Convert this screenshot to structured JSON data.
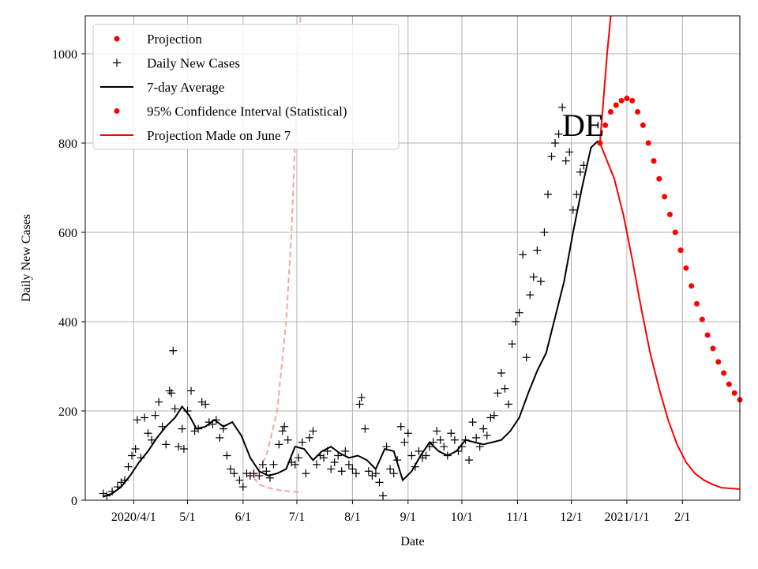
{
  "chart_data": {
    "type": "line",
    "title": "",
    "region_label": "DE",
    "xlabel": "Date",
    "ylabel": "Daily New Cases",
    "x_ticks": [
      {
        "label": "2020/4/1",
        "date": "2020-04-01"
      },
      {
        "label": "5/1",
        "date": "2020-05-01"
      },
      {
        "label": "6/1",
        "date": "2020-06-01"
      },
      {
        "label": "7/1",
        "date": "2020-07-01"
      },
      {
        "label": "8/1",
        "date": "2020-08-01"
      },
      {
        "label": "9/1",
        "date": "2020-09-01"
      },
      {
        "label": "10/1",
        "date": "2020-10-01"
      },
      {
        "label": "11/1",
        "date": "2020-11-01"
      },
      {
        "label": "12/1",
        "date": "2020-12-01"
      },
      {
        "label": "2021/1/1",
        "date": "2021-01-01"
      },
      {
        "label": "2/1",
        "date": "2021-02-01"
      }
    ],
    "y_ticks": [
      0,
      200,
      400,
      600,
      800,
      1000
    ],
    "xlim": [
      "2020-03-05",
      "2021-03-05"
    ],
    "ylim": [
      0,
      1085
    ],
    "grid": true,
    "legend_position": "upper-left",
    "legend": [
      {
        "label": "Projection",
        "marker": "dot",
        "color": "#ff0000"
      },
      {
        "label": "Daily New Cases",
        "marker": "plus",
        "color": "#000000"
      },
      {
        "label": "7-day Average",
        "marker": "line",
        "color": "#000000"
      },
      {
        "label": "95% Confidence Interval (Statistical)",
        "marker": "dot",
        "color": "#ff0000"
      },
      {
        "label": "Projection Made on June 7",
        "marker": "line",
        "color": "#ff0000"
      }
    ],
    "colors": {
      "daily": "#000000",
      "average": "#000000",
      "projection": "#ff0000",
      "june_projection": "#f4a6a6"
    },
    "seven_day_average": [
      [
        "2020-03-15",
        8
      ],
      [
        "2020-03-20",
        15
      ],
      [
        "2020-03-25",
        30
      ],
      [
        "2020-03-30",
        55
      ],
      [
        "2020-04-04",
        85
      ],
      [
        "2020-04-09",
        110
      ],
      [
        "2020-04-14",
        140
      ],
      [
        "2020-04-19",
        165
      ],
      [
        "2020-04-24",
        185
      ],
      [
        "2020-04-28",
        210
      ],
      [
        "2020-05-02",
        190
      ],
      [
        "2020-05-06",
        160
      ],
      [
        "2020-05-11",
        165
      ],
      [
        "2020-05-16",
        180
      ],
      [
        "2020-05-21",
        165
      ],
      [
        "2020-05-26",
        175
      ],
      [
        "2020-05-31",
        145
      ],
      [
        "2020-06-05",
        95
      ],
      [
        "2020-06-10",
        65
      ],
      [
        "2020-06-15",
        55
      ],
      [
        "2020-06-20",
        60
      ],
      [
        "2020-06-25",
        70
      ],
      [
        "2020-06-30",
        120
      ],
      [
        "2020-07-05",
        115
      ],
      [
        "2020-07-10",
        90
      ],
      [
        "2020-07-15",
        110
      ],
      [
        "2020-07-20",
        120
      ],
      [
        "2020-07-25",
        105
      ],
      [
        "2020-07-30",
        95
      ],
      [
        "2020-08-04",
        100
      ],
      [
        "2020-08-09",
        90
      ],
      [
        "2020-08-14",
        70
      ],
      [
        "2020-08-19",
        115
      ],
      [
        "2020-08-24",
        110
      ],
      [
        "2020-08-29",
        45
      ],
      [
        "2020-09-03",
        65
      ],
      [
        "2020-09-08",
        100
      ],
      [
        "2020-09-13",
        130
      ],
      [
        "2020-09-18",
        110
      ],
      [
        "2020-09-23",
        100
      ],
      [
        "2020-09-28",
        110
      ],
      [
        "2020-10-03",
        135
      ],
      [
        "2020-10-08",
        130
      ],
      [
        "2020-10-13",
        125
      ],
      [
        "2020-10-18",
        130
      ],
      [
        "2020-10-23",
        135
      ],
      [
        "2020-10-28",
        155
      ],
      [
        "2020-11-02",
        185
      ],
      [
        "2020-11-07",
        240
      ],
      [
        "2020-11-12",
        290
      ],
      [
        "2020-11-17",
        330
      ],
      [
        "2020-11-22",
        410
      ],
      [
        "2020-11-27",
        490
      ],
      [
        "2020-12-02",
        600
      ],
      [
        "2020-12-07",
        700
      ],
      [
        "2020-12-12",
        790
      ],
      [
        "2020-12-16",
        805
      ]
    ],
    "daily_new_cases": [
      [
        "2020-03-15",
        15
      ],
      [
        "2020-03-17",
        10
      ],
      [
        "2020-03-20",
        20
      ],
      [
        "2020-03-23",
        30
      ],
      [
        "2020-03-25",
        40
      ],
      [
        "2020-03-27",
        45
      ],
      [
        "2020-03-29",
        75
      ],
      [
        "2020-03-31",
        100
      ],
      [
        "2020-04-02",
        115
      ],
      [
        "2020-04-03",
        180
      ],
      [
        "2020-04-05",
        95
      ],
      [
        "2020-04-07",
        185
      ],
      [
        "2020-04-09",
        150
      ],
      [
        "2020-04-11",
        135
      ],
      [
        "2020-04-13",
        190
      ],
      [
        "2020-04-15",
        220
      ],
      [
        "2020-04-17",
        165
      ],
      [
        "2020-04-19",
        125
      ],
      [
        "2020-04-21",
        245
      ],
      [
        "2020-04-22",
        240
      ],
      [
        "2020-04-23",
        335
      ],
      [
        "2020-04-24",
        205
      ],
      [
        "2020-04-26",
        120
      ],
      [
        "2020-04-28",
        160
      ],
      [
        "2020-04-29",
        115
      ],
      [
        "2020-05-01",
        200
      ],
      [
        "2020-05-03",
        245
      ],
      [
        "2020-05-05",
        155
      ],
      [
        "2020-05-07",
        160
      ],
      [
        "2020-05-09",
        220
      ],
      [
        "2020-05-11",
        215
      ],
      [
        "2020-05-13",
        175
      ],
      [
        "2020-05-15",
        170
      ],
      [
        "2020-05-17",
        180
      ],
      [
        "2020-05-19",
        140
      ],
      [
        "2020-05-21",
        160
      ],
      [
        "2020-05-23",
        100
      ],
      [
        "2020-05-25",
        70
      ],
      [
        "2020-05-27",
        60
      ],
      [
        "2020-05-30",
        45
      ],
      [
        "2020-06-01",
        30
      ],
      [
        "2020-06-03",
        60
      ],
      [
        "2020-06-05",
        55
      ],
      [
        "2020-06-07",
        60
      ],
      [
        "2020-06-10",
        55
      ],
      [
        "2020-06-12",
        80
      ],
      [
        "2020-06-14",
        65
      ],
      [
        "2020-06-16",
        50
      ],
      [
        "2020-06-18",
        80
      ],
      [
        "2020-06-21",
        125
      ],
      [
        "2020-06-23",
        155
      ],
      [
        "2020-06-24",
        165
      ],
      [
        "2020-06-26",
        135
      ],
      [
        "2020-06-28",
        85
      ],
      [
        "2020-06-30",
        80
      ],
      [
        "2020-07-02",
        95
      ],
      [
        "2020-07-04",
        130
      ],
      [
        "2020-07-06",
        60
      ],
      [
        "2020-07-08",
        140
      ],
      [
        "2020-07-10",
        155
      ],
      [
        "2020-07-12",
        80
      ],
      [
        "2020-07-14",
        100
      ],
      [
        "2020-07-16",
        95
      ],
      [
        "2020-07-18",
        110
      ],
      [
        "2020-07-20",
        70
      ],
      [
        "2020-07-22",
        85
      ],
      [
        "2020-07-24",
        100
      ],
      [
        "2020-07-26",
        65
      ],
      [
        "2020-07-28",
        110
      ],
      [
        "2020-07-30",
        80
      ],
      [
        "2020-08-01",
        70
      ],
      [
        "2020-08-03",
        60
      ],
      [
        "2020-08-05",
        215
      ],
      [
        "2020-08-06",
        230
      ],
      [
        "2020-08-08",
        160
      ],
      [
        "2020-08-10",
        65
      ],
      [
        "2020-08-12",
        55
      ],
      [
        "2020-08-14",
        60
      ],
      [
        "2020-08-16",
        40
      ],
      [
        "2020-08-18",
        10
      ],
      [
        "2020-08-20",
        120
      ],
      [
        "2020-08-22",
        70
      ],
      [
        "2020-08-24",
        60
      ],
      [
        "2020-08-26",
        90
      ],
      [
        "2020-08-28",
        165
      ],
      [
        "2020-08-30",
        130
      ],
      [
        "2020-09-01",
        150
      ],
      [
        "2020-09-03",
        100
      ],
      [
        "2020-09-05",
        75
      ],
      [
        "2020-09-07",
        110
      ],
      [
        "2020-09-09",
        95
      ],
      [
        "2020-09-11",
        100
      ],
      [
        "2020-09-13",
        120
      ],
      [
        "2020-09-15",
        130
      ],
      [
        "2020-09-17",
        155
      ],
      [
        "2020-09-19",
        135
      ],
      [
        "2020-09-21",
        120
      ],
      [
        "2020-09-23",
        100
      ],
      [
        "2020-09-25",
        150
      ],
      [
        "2020-09-27",
        135
      ],
      [
        "2020-09-29",
        110
      ],
      [
        "2020-10-01",
        120
      ],
      [
        "2020-10-03",
        135
      ],
      [
        "2020-10-05",
        90
      ],
      [
        "2020-10-07",
        175
      ],
      [
        "2020-10-09",
        140
      ],
      [
        "2020-10-11",
        120
      ],
      [
        "2020-10-13",
        160
      ],
      [
        "2020-10-15",
        145
      ],
      [
        "2020-10-17",
        185
      ],
      [
        "2020-10-19",
        190
      ],
      [
        "2020-10-21",
        240
      ],
      [
        "2020-10-23",
        285
      ],
      [
        "2020-10-25",
        250
      ],
      [
        "2020-10-27",
        215
      ],
      [
        "2020-10-29",
        350
      ],
      [
        "2020-10-31",
        400
      ],
      [
        "2020-11-02",
        420
      ],
      [
        "2020-11-04",
        550
      ],
      [
        "2020-11-06",
        320
      ],
      [
        "2020-11-08",
        460
      ],
      [
        "2020-11-10",
        500
      ],
      [
        "2020-11-12",
        560
      ],
      [
        "2020-11-14",
        490
      ],
      [
        "2020-11-16",
        600
      ],
      [
        "2020-11-18",
        685
      ],
      [
        "2020-11-20",
        770
      ],
      [
        "2020-11-22",
        800
      ],
      [
        "2020-11-24",
        820
      ],
      [
        "2020-11-26",
        880
      ],
      [
        "2020-11-28",
        760
      ],
      [
        "2020-11-30",
        780
      ],
      [
        "2020-12-02",
        650
      ],
      [
        "2020-12-04",
        685
      ],
      [
        "2020-12-06",
        735
      ],
      [
        "2020-12-08",
        750
      ]
    ],
    "projection": [
      [
        "2020-12-17",
        800
      ],
      [
        "2020-12-20",
        840
      ],
      [
        "2020-12-23",
        870
      ],
      [
        "2020-12-26",
        885
      ],
      [
        "2020-12-29",
        895
      ],
      [
        "2021-01-01",
        900
      ],
      [
        "2021-01-04",
        895
      ],
      [
        "2021-01-07",
        870
      ],
      [
        "2021-01-10",
        840
      ],
      [
        "2021-01-13",
        800
      ],
      [
        "2021-01-16",
        760
      ],
      [
        "2021-01-19",
        720
      ],
      [
        "2021-01-22",
        680
      ],
      [
        "2021-01-25",
        640
      ],
      [
        "2021-01-28",
        600
      ],
      [
        "2021-01-31",
        560
      ],
      [
        "2021-02-03",
        520
      ],
      [
        "2021-02-06",
        480
      ],
      [
        "2021-02-09",
        440
      ],
      [
        "2021-02-12",
        405
      ],
      [
        "2021-02-15",
        370
      ],
      [
        "2021-02-18",
        340
      ],
      [
        "2021-02-21",
        310
      ],
      [
        "2021-02-24",
        285
      ],
      [
        "2021-02-27",
        260
      ],
      [
        "2021-03-02",
        240
      ],
      [
        "2021-03-05",
        225
      ]
    ],
    "confidence_interval_upper": [
      [
        "2020-12-17",
        800
      ],
      [
        "2020-12-19",
        900
      ],
      [
        "2020-12-21",
        1000
      ],
      [
        "2020-12-23",
        1085
      ]
    ],
    "confidence_interval_lower": [
      [
        "2020-12-17",
        800
      ],
      [
        "2020-12-21",
        760
      ],
      [
        "2020-12-25",
        720
      ],
      [
        "2020-12-30",
        640
      ],
      [
        "2021-01-04",
        540
      ],
      [
        "2021-01-09",
        430
      ],
      [
        "2021-01-14",
        330
      ],
      [
        "2021-01-19",
        250
      ],
      [
        "2021-01-24",
        180
      ],
      [
        "2021-01-29",
        125
      ],
      [
        "2021-02-03",
        85
      ],
      [
        "2021-02-08",
        60
      ],
      [
        "2021-02-13",
        45
      ],
      [
        "2021-02-18",
        35
      ],
      [
        "2021-02-23",
        28
      ],
      [
        "2021-03-05",
        25
      ]
    ],
    "june_projection_upper": [
      [
        "2020-06-07",
        50
      ],
      [
        "2020-06-14",
        100
      ],
      [
        "2020-06-20",
        200
      ],
      [
        "2020-06-25",
        400
      ],
      [
        "2020-06-28",
        600
      ],
      [
        "2020-06-30",
        800
      ],
      [
        "2020-07-02",
        1000
      ],
      [
        "2020-07-03",
        1085
      ]
    ],
    "june_projection_lower": [
      [
        "2020-06-07",
        50
      ],
      [
        "2020-06-10",
        35
      ],
      [
        "2020-06-15",
        28
      ],
      [
        "2020-06-22",
        22
      ],
      [
        "2020-06-30",
        19
      ],
      [
        "2020-07-04",
        18
      ]
    ]
  }
}
